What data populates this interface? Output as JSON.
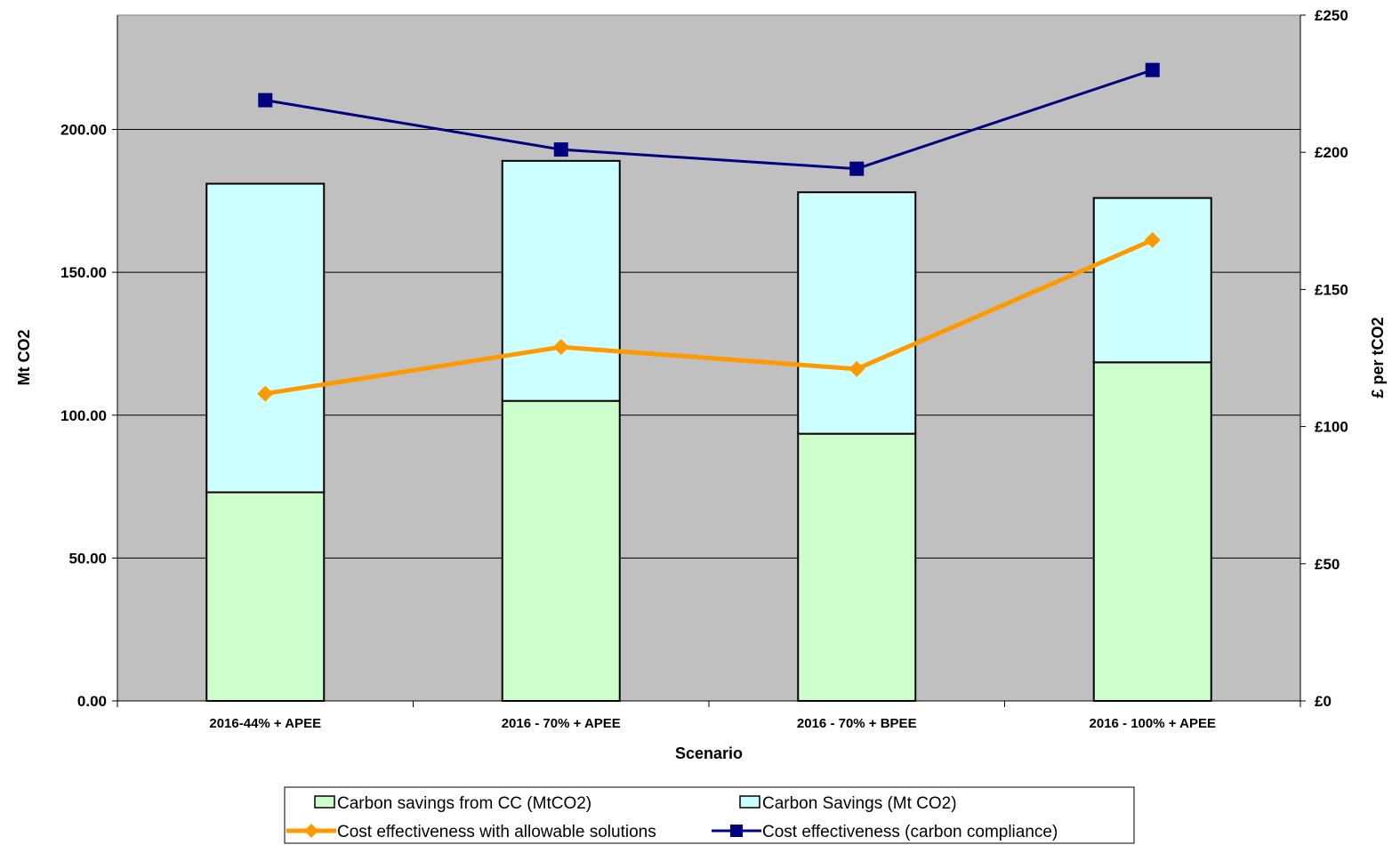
{
  "chart_data": {
    "type": "bar",
    "stacked": true,
    "categories": [
      "2016-44% + APEE",
      "2016 - 70% + APEE",
      "2016 - 70% + BPEE",
      "2016 - 100% + APEE"
    ],
    "xlabel": "Scenario",
    "ylabel": "Mt CO2",
    "y2label": "£ per tCO2",
    "ylim": [
      0,
      240
    ],
    "y_ticks": [
      0,
      50,
      100,
      150,
      200
    ],
    "y_tick_labels": [
      "0.00",
      "50.00",
      "100.00",
      "150.00",
      "200.00"
    ],
    "y2lim": [
      0,
      250
    ],
    "y2_ticks": [
      0,
      50,
      100,
      150,
      200,
      250
    ],
    "y2_tick_labels": [
      "£0",
      "£50",
      "£100",
      "£150",
      "£200",
      "£250"
    ],
    "grid": true,
    "legend_position": "bottom",
    "series": [
      {
        "name": "Carbon savings from CC (MtCO2)",
        "kind": "bar",
        "axis": "left",
        "color": "#ccffcc",
        "values": [
          73,
          105,
          93.5,
          118.5
        ]
      },
      {
        "name": "Carbon Savings (Mt CO2)",
        "kind": "bar",
        "axis": "left",
        "color": "#ccffff",
        "values": [
          108,
          84,
          84.5,
          57.5
        ]
      },
      {
        "name": "Cost effectiveness with allowable solutions",
        "kind": "line",
        "axis": "right",
        "marker": "diamond",
        "color": "#ff9900",
        "values": [
          112,
          129,
          121,
          168
        ]
      },
      {
        "name": "Cost effectiveness (carbon compliance)",
        "kind": "line",
        "axis": "right",
        "marker": "square",
        "color": "#000080",
        "values": [
          219,
          201,
          194,
          230
        ]
      }
    ]
  }
}
